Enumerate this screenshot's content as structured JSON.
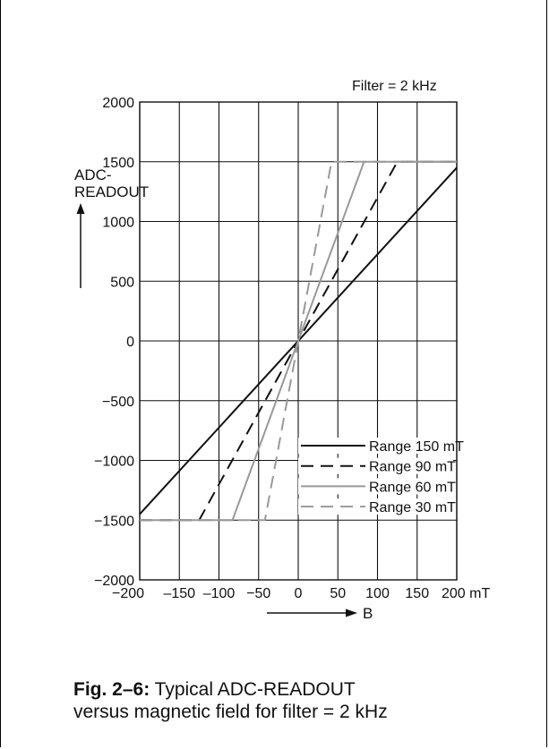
{
  "chart_data": {
    "type": "line",
    "title": "",
    "note": "Filter = 2 kHz",
    "ylabel_line1": "ADC-",
    "ylabel_line2": "READOUT",
    "xlabel": "B",
    "x_unit": "mT",
    "xlim": [
      -200,
      200
    ],
    "ylim": [
      -2000,
      2000
    ],
    "xticks": [
      -200,
      -150,
      -100,
      -50,
      0,
      50,
      100,
      150,
      200
    ],
    "xtick_labels": [
      "−200",
      "–150",
      "–100",
      "−50",
      "0",
      "50",
      "100",
      "150",
      "200 mT"
    ],
    "yticks": [
      2000,
      1500,
      1000,
      500,
      0,
      -500,
      -1000,
      -1500,
      -2000
    ],
    "ytick_labels": [
      "2000",
      "1500",
      "1000",
      "500",
      "0",
      "−500",
      "−1000",
      "−1500",
      "−2000"
    ],
    "grid": true,
    "legend_position": "bottom-right",
    "series": [
      {
        "name": "Range 150 mT",
        "color": "#111111",
        "dash": "solid",
        "x": [
          -200,
          200
        ],
        "y": [
          -1450,
          1450
        ]
      },
      {
        "name": "Range 90 mT",
        "color": "#111111",
        "dash": "dashed",
        "x": [
          -200,
          -125,
          125,
          200
        ],
        "y": [
          -1500,
          -1500,
          1500,
          1500
        ]
      },
      {
        "name": "Range 60 mT",
        "color": "#999999",
        "dash": "solid",
        "x": [
          -200,
          -83,
          83,
          200
        ],
        "y": [
          -1500,
          -1500,
          1500,
          1500
        ]
      },
      {
        "name": "Range 30 mT",
        "color": "#999999",
        "dash": "dashed",
        "x": [
          -200,
          -42,
          42,
          200
        ],
        "y": [
          -1500,
          -1500,
          1500,
          1500
        ]
      }
    ]
  },
  "caption": {
    "label": "Fig. 2–6:",
    "line1": " Typical ADC-READOUT",
    "line2": "versus magnetic field for filter = 2 kHz"
  }
}
